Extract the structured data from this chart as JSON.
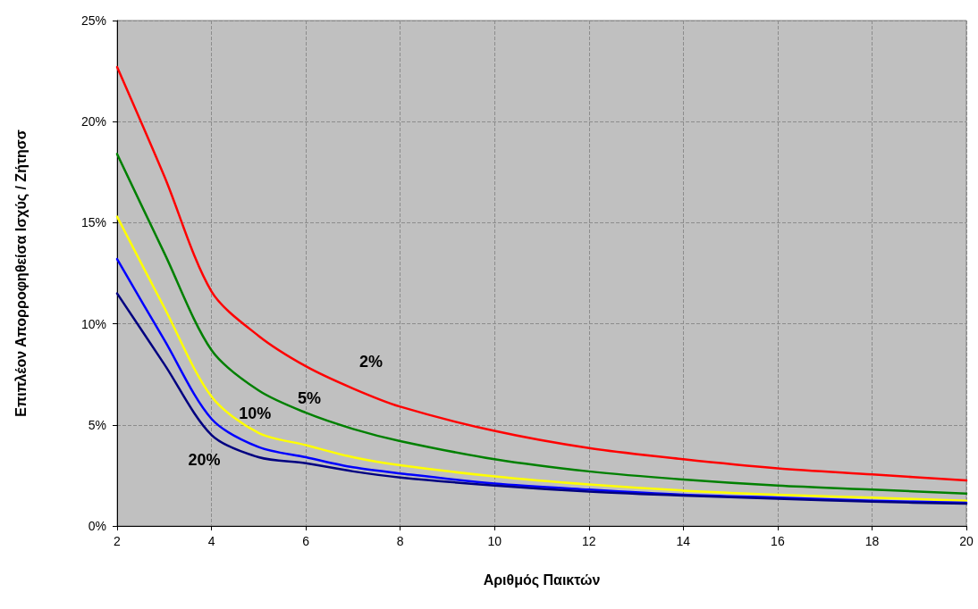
{
  "chart_data": {
    "type": "line",
    "xlabel": "Αριθμός Παικτών",
    "ylabel": "Επιπλέον Απορροφηθείσα Ισχύς / Ζήτησσ",
    "x": [
      2,
      3,
      4,
      5,
      6,
      7,
      8,
      10,
      12,
      14,
      16,
      18,
      20
    ],
    "series": [
      {
        "name": "2%",
        "color": "#ff0000",
        "values": [
          22.7,
          17.3,
          11.6,
          9.4,
          7.9,
          6.8,
          5.9,
          4.7,
          3.85,
          3.3,
          2.85,
          2.55,
          2.25
        ]
      },
      {
        "name": "5%",
        "color": "#008000",
        "values": [
          18.4,
          13.5,
          8.7,
          6.7,
          5.6,
          4.8,
          4.2,
          3.3,
          2.7,
          2.3,
          2.0,
          1.8,
          1.6
        ]
      },
      {
        "name": "10%",
        "color": "#ffff00",
        "values": [
          15.3,
          10.8,
          6.4,
          4.6,
          4.0,
          3.4,
          3.0,
          2.45,
          2.05,
          1.75,
          1.55,
          1.4,
          1.25
        ]
      },
      {
        "color": "#0000ff",
        "values": [
          13.2,
          9.2,
          5.3,
          3.9,
          3.4,
          2.9,
          2.6,
          2.1,
          1.8,
          1.55,
          1.4,
          1.25,
          1.15
        ]
      },
      {
        "name": "20%",
        "color": "#000080",
        "values": [
          11.5,
          8.0,
          4.5,
          3.4,
          3.1,
          2.7,
          2.4,
          2.0,
          1.7,
          1.5,
          1.35,
          1.2,
          1.1
        ]
      }
    ],
    "xlim": [
      2,
      20
    ],
    "xticks": [
      2,
      4,
      6,
      8,
      10,
      12,
      14,
      16,
      18,
      20
    ],
    "ylim": [
      0,
      25
    ],
    "yticks": [
      {
        "value": 0,
        "label": "0%"
      },
      {
        "value": 5,
        "label": "5%"
      },
      {
        "value": 10,
        "label": "10%"
      },
      {
        "value": 15,
        "label": "15%"
      },
      {
        "value": 20,
        "label": "20%"
      },
      {
        "value": 25,
        "label": "25%"
      }
    ],
    "grid": true,
    "marker": "none",
    "line_style": "solid"
  }
}
